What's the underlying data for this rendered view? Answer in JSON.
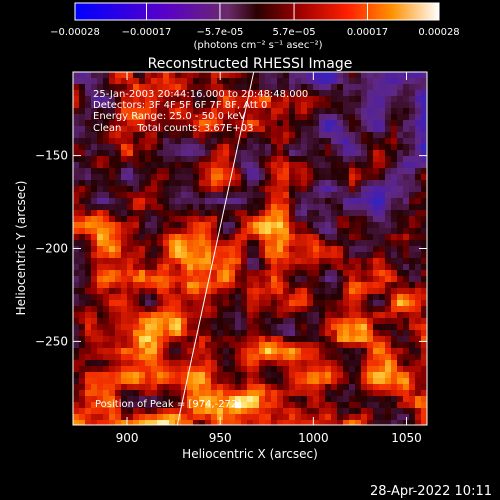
{
  "chart_data": {
    "type": "heatmap",
    "title": "Reconstructed RHESSI Image",
    "xlabel": "Heliocentric X (arcsec)",
    "ylabel": "Heliocentric Y (arcsec)",
    "xlim": [
      871,
      1061
    ],
    "ylim": [
      -295,
      -105
    ],
    "x_ticks": [
      900,
      950,
      1000,
      1050
    ],
    "y_ticks": [
      -250,
      -200,
      -150
    ],
    "colorbar": {
      "range": [
        -0.00028,
        0.00028
      ],
      "tick_labels": [
        "-0.00028",
        "-0.00017",
        "-5.7e-05",
        "5.7e-05",
        "0.00017",
        "0.00028"
      ],
      "tick_values": [
        -0.00028,
        -0.00017,
        -5.7e-05,
        5.7e-05,
        0.00017,
        0.00028
      ],
      "unit_label": "(photons cm⁻² s⁻¹ asec⁻²)"
    },
    "annotations": [
      "25-Jan-2003 20:44:16.000 to 20:48:48.000",
      "Detectors: 3F 4F 5F 6F 7F 8F, Att 0",
      "Energy Range: 25.0 - 50.0 keV",
      "Clean     Total counts: 3.67E+03"
    ],
    "peak_label": "Position of Peak = [974,-272]",
    "peak_position": [
      974,
      -272
    ],
    "limb_line": [
      [
        927,
        -295
      ],
      [
        968,
        -105
      ]
    ],
    "footer_timestamp": "28-Apr-2022 10:11"
  }
}
